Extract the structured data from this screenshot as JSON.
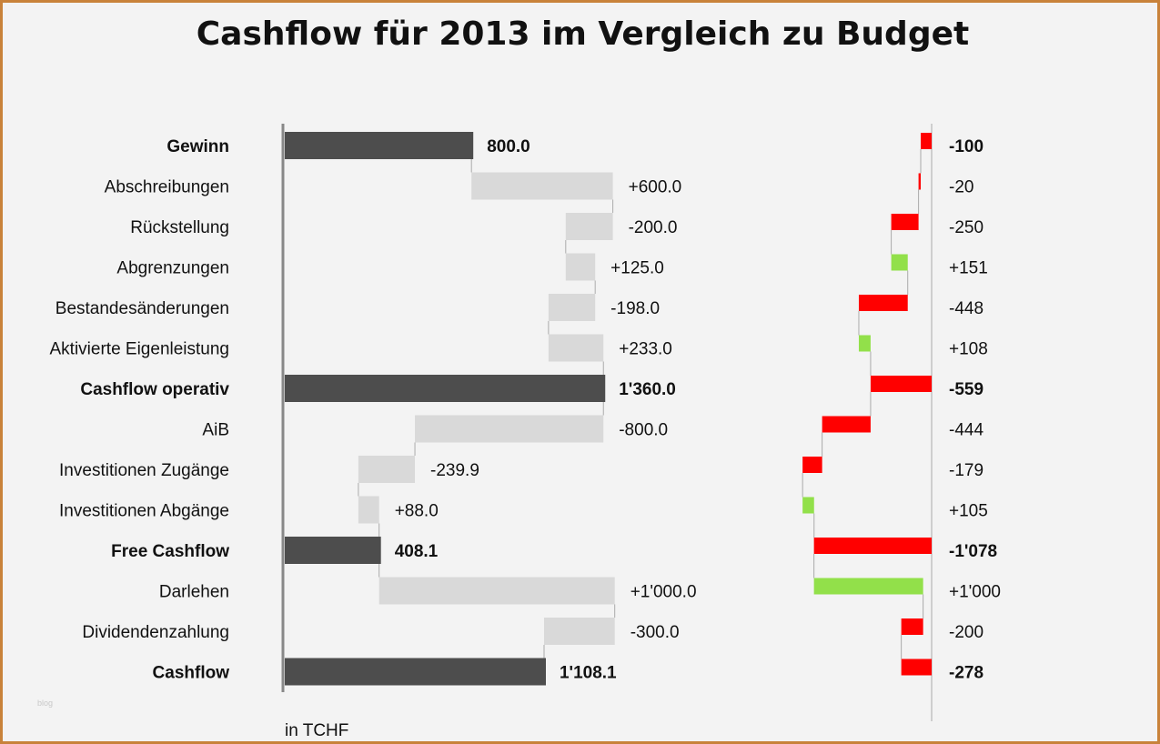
{
  "chart_data": {
    "type": "waterfall",
    "title": "Cashflow für 2013 im Vergleich zu Budget",
    "unit_label": "in TCHF",
    "watermark": "blog",
    "categories": [
      "Gewinn",
      "Abschreibungen",
      "Rückstellung",
      "Abgrenzungen",
      "Bestandesänderungen",
      "Aktivierte  Eigenleistung",
      "Cashflow operativ",
      "AiB",
      "Investitionen Zugänge",
      "Investitionen Abgänge",
      "Free Cashflow",
      "Darlehen",
      "Dividendenzahlung",
      "Cashflow"
    ],
    "is_total": [
      true,
      false,
      false,
      false,
      false,
      false,
      true,
      false,
      false,
      false,
      true,
      false,
      false,
      true
    ],
    "series": [
      {
        "values": [
          800,
          600,
          -200,
          125,
          -198,
          233,
          1360,
          -800,
          -239.9,
          88,
          408.1,
          1000,
          -300,
          1108.1
        ],
        "labels": [
          "800.0",
          "+600.0",
          "-200.0",
          "+125.0",
          "-198.0",
          "+233.0",
          "1'360.0",
          "-800.0",
          "-239.9",
          "+88.0",
          "408.1",
          "+1'000.0",
          "-300.0",
          "1'108.1"
        ]
      },
      {
        "values": [
          -100,
          -20,
          -250,
          151,
          -448,
          108,
          -559,
          -444,
          -179,
          105,
          -1078,
          1000,
          -200,
          -278
        ],
        "labels": [
          "-100",
          "-20",
          "-250",
          "+151",
          "-448",
          "+108",
          "-559",
          "-444",
          "-179",
          "+105",
          "-1'078",
          "+1'000",
          "-200",
          "-278"
        ]
      }
    ],
    "colors": {
      "total": "#4d4d4d",
      "delta": "#d9d9d9",
      "negative": "#ff0000",
      "positive": "#92e04a",
      "axis": "#888888",
      "frame": "#c8823a"
    }
  }
}
